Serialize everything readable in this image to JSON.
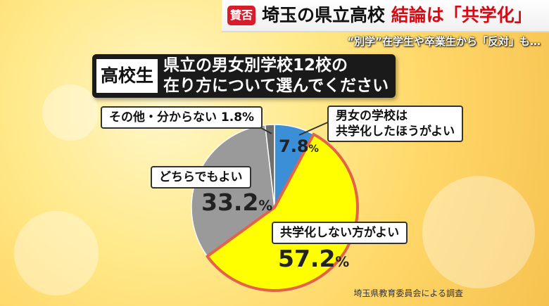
{
  "header": {
    "badge": "賛否",
    "headline_part1": "埼玉の県立高校",
    "headline_part2": "結論は「共学化」",
    "subline": "“別学”在学生や卒業生から「反対」も…"
  },
  "question": {
    "tag": "高校生",
    "line1": "県立の男女別学校12校の",
    "line2": "在り方について選んでください"
  },
  "chart_data": {
    "type": "pie",
    "categories": [
      "男女の学校は共学化したほうがよい",
      "共学化しない方がよい",
      "どちらでもよい",
      "その他・分からない"
    ],
    "values": [
      7.8,
      57.2,
      33.2,
      1.8
    ],
    "colors": [
      "#3b8fd6",
      "#ffff00",
      "#9a9a9a",
      "#6f6f6f"
    ],
    "highlight": "共学化しない方がよい",
    "highlight_color": "#e4624a"
  },
  "labels": {
    "coed_line1": "男女の学校は",
    "coed_line2": "共学化したほうがよい",
    "coed_pct": "7.8",
    "notcoed": "共学化しない方がよい",
    "notcoed_pct": "57.2",
    "either": "どちらでもよい",
    "either_pct": "33.2",
    "other": "その他・分からない 1.8%",
    "pct_sign": "%"
  },
  "source": "埼玉県教育委員会による調査"
}
